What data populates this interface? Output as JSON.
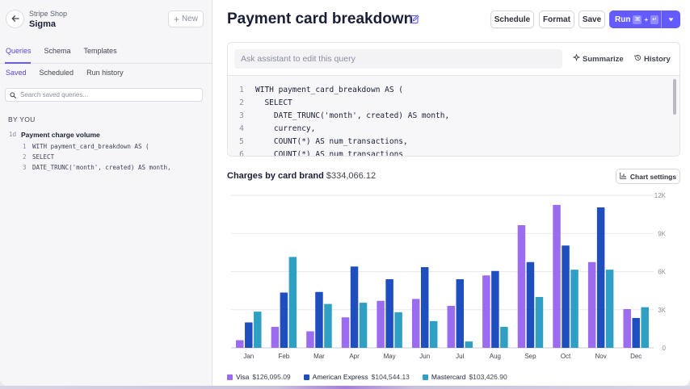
{
  "sidebar": {
    "app_name": "Stripe Shop",
    "app_title": "Sigma",
    "new_label": "New",
    "tabs": [
      {
        "label": "Queries",
        "active": true
      },
      {
        "label": "Schema",
        "active": false
      },
      {
        "label": "Templates",
        "active": false
      }
    ],
    "subtabs": [
      {
        "label": "Saved",
        "active": true
      },
      {
        "label": "Scheduled",
        "active": false
      },
      {
        "label": "Run history",
        "active": false
      }
    ],
    "search_placeholder": "Search saved queries...",
    "section_label": "BY YOU",
    "saved_queries": [
      {
        "age": "1d",
        "name": "Payment charge volume",
        "snippet": [
          {
            "n": "1",
            "text": "WITH payment_card_breakdown AS ("
          },
          {
            "n": "2",
            "text": "SELECT"
          },
          {
            "n": "3",
            "text": "DATE_TRUNC('month', created) AS month,"
          }
        ]
      }
    ]
  },
  "header": {
    "title": "Payment card breakdown",
    "schedule_label": "Schedule",
    "format_label": "Format",
    "save_label": "Save",
    "run_label": "Run",
    "run_shortcut": [
      "⌘",
      "+",
      "↵"
    ]
  },
  "editor": {
    "assistant_placeholder": "Ask assistant to edit this query",
    "summarize_label": "Summarize",
    "history_label": "History",
    "code_lines": [
      {
        "n": "1",
        "text": "WITH payment_card_breakdown AS ("
      },
      {
        "n": "2",
        "text": "  SELECT"
      },
      {
        "n": "3",
        "text": "    DATE_TRUNC('month', created) AS month,"
      },
      {
        "n": "4",
        "text": "    currency,"
      },
      {
        "n": "5",
        "text": "    COUNT(*) AS num_transactions,"
      },
      {
        "n": "6",
        "text": "    COUNT(*) AS num_transactions"
      }
    ]
  },
  "chart_section": {
    "title": "Charges by card brand",
    "total": "$334,066.12",
    "settings_label": "Chart settings"
  },
  "chart_data": {
    "type": "bar",
    "title": "Charges by card brand",
    "categories": [
      "Jan",
      "Feb",
      "Mar",
      "Apr",
      "May",
      "Jun",
      "Jul",
      "Aug",
      "Sep",
      "Oct",
      "Nov",
      "Dec"
    ],
    "ylim": [
      0,
      12000
    ],
    "y_ticks": [
      {
        "v": 0,
        "label": "0"
      },
      {
        "v": 3000,
        "label": "3K"
      },
      {
        "v": 6000,
        "label": "6K"
      },
      {
        "v": 9000,
        "label": "9K"
      },
      {
        "v": 12000,
        "label": "12K"
      }
    ],
    "grid": true,
    "legend_position": "bottom-left",
    "series": [
      {
        "name": "Visa",
        "total": "$126,095.09",
        "color": "#9c6cf0",
        "values": [
          600,
          1650,
          1300,
          2400,
          3700,
          3850,
          3300,
          5700,
          9650,
          11250,
          6750,
          3050
        ]
      },
      {
        "name": "American Express",
        "total": "$104,544.13",
        "color": "#1f4fbf",
        "values": [
          2000,
          4350,
          4400,
          6400,
          5400,
          6350,
          5400,
          6050,
          6750,
          8050,
          11050,
          2350
        ]
      },
      {
        "name": "Mastercard",
        "total": "$103,426.90",
        "color": "#2fa0c3",
        "values": [
          2850,
          7150,
          3450,
          3550,
          2800,
          2100,
          500,
          1650,
          4000,
          6150,
          6150,
          3200
        ]
      }
    ]
  }
}
